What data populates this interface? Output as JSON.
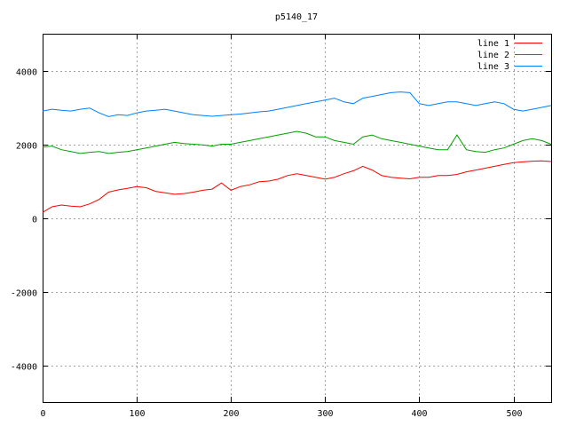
{
  "chart_data": {
    "type": "line",
    "title": "p5140_17",
    "xlabel": "",
    "ylabel": "",
    "xlim": [
      0,
      540
    ],
    "ylim": [
      -5000,
      5000
    ],
    "x_ticks": [
      0,
      100,
      200,
      300,
      400,
      500
    ],
    "y_ticks": [
      -4000,
      -2000,
      0,
      2000,
      4000
    ],
    "grid": true,
    "legend_position": "top-right",
    "x": [
      0,
      10,
      20,
      30,
      40,
      50,
      60,
      70,
      80,
      90,
      100,
      110,
      120,
      130,
      140,
      150,
      160,
      170,
      180,
      190,
      200,
      210,
      220,
      230,
      240,
      250,
      260,
      270,
      280,
      290,
      300,
      310,
      320,
      330,
      340,
      350,
      360,
      370,
      380,
      390,
      400,
      410,
      420,
      430,
      440,
      450,
      460,
      470,
      480,
      490,
      500,
      510,
      520,
      530,
      540
    ],
    "series": [
      {
        "name": "line 1",
        "color": "#ff0000",
        "values": [
          150,
          300,
          350,
          320,
          300,
          380,
          500,
          700,
          760,
          800,
          850,
          820,
          720,
          680,
          640,
          660,
          700,
          750,
          780,
          950,
          750,
          850,
          900,
          980,
          1000,
          1050,
          1150,
          1200,
          1150,
          1100,
          1050,
          1100,
          1200,
          1280,
          1400,
          1300,
          1150,
          1100,
          1080,
          1060,
          1100,
          1100,
          1150,
          1150,
          1180,
          1250,
          1300,
          1350,
          1400,
          1450,
          1500,
          1520,
          1540,
          1550,
          1530
        ]
      },
      {
        "name": "line 2",
        "color": "#00a000",
        "values": [
          1920,
          1950,
          1850,
          1800,
          1750,
          1780,
          1800,
          1750,
          1780,
          1800,
          1850,
          1900,
          1950,
          2000,
          2050,
          2020,
          2000,
          1980,
          1950,
          2000,
          2000,
          2050,
          2100,
          2150,
          2200,
          2250,
          2300,
          2350,
          2300,
          2200,
          2200,
          2100,
          2050,
          2000,
          2200,
          2250,
          2150,
          2100,
          2050,
          2000,
          1950,
          1900,
          1850,
          1850,
          2250,
          1850,
          1800,
          1780,
          1850,
          1900,
          2000,
          2100,
          2150,
          2100,
          2000
        ]
      },
      {
        "name": "line 3",
        "color": "#0080ff",
        "values": [
          2900,
          2950,
          2920,
          2900,
          2950,
          2980,
          2850,
          2750,
          2800,
          2780,
          2850,
          2900,
          2920,
          2950,
          2900,
          2850,
          2800,
          2780,
          2760,
          2780,
          2800,
          2820,
          2850,
          2880,
          2900,
          2950,
          3000,
          3050,
          3100,
          3150,
          3200,
          3250,
          3150,
          3100,
          3250,
          3300,
          3350,
          3400,
          3420,
          3400,
          3100,
          3050,
          3100,
          3150,
          3150,
          3100,
          3050,
          3100,
          3150,
          3100,
          2950,
          2900,
          2950,
          3000,
          3050
        ]
      }
    ]
  }
}
